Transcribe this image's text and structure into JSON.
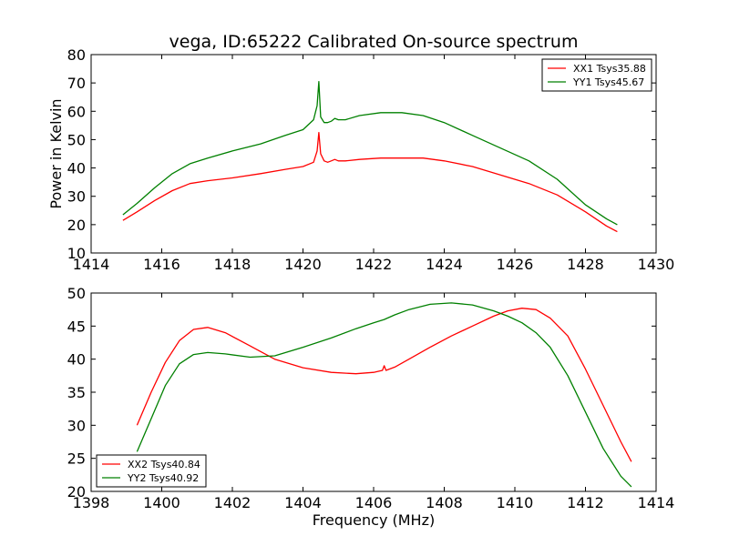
{
  "chart_data": [
    {
      "type": "line",
      "title": "vega, ID:65222 Calibrated On-source spectrum",
      "xlabel": "",
      "ylabel": "Power in Kelvin",
      "xlim": [
        1414,
        1430
      ],
      "ylim": [
        10,
        80
      ],
      "xticks": [
        1414,
        1416,
        1418,
        1420,
        1422,
        1424,
        1426,
        1428,
        1430
      ],
      "yticks": [
        10,
        20,
        30,
        40,
        50,
        60,
        70,
        80
      ],
      "legend_position": "top-right",
      "series": [
        {
          "name": "XX1 Tsys35.88",
          "color": "#ff0000",
          "x": [
            1414.9,
            1415.3,
            1415.8,
            1416.3,
            1416.8,
            1417.3,
            1418.0,
            1418.8,
            1419.5,
            1420.0,
            1420.3,
            1420.4,
            1420.45,
            1420.5,
            1420.6,
            1420.7,
            1420.8,
            1420.9,
            1421.0,
            1421.2,
            1421.6,
            1422.2,
            1422.8,
            1423.4,
            1424.0,
            1424.8,
            1425.6,
            1426.4,
            1427.2,
            1428.0,
            1428.6,
            1428.9
          ],
          "y": [
            21.5,
            24.5,
            28.5,
            32.0,
            34.5,
            35.5,
            36.5,
            38.0,
            39.5,
            40.5,
            42.0,
            46.0,
            52.5,
            45.0,
            42.5,
            42.0,
            42.5,
            43.0,
            42.5,
            42.5,
            43.0,
            43.5,
            43.5,
            43.5,
            42.5,
            40.5,
            37.5,
            34.5,
            30.5,
            24.5,
            19.5,
            17.5
          ]
        },
        {
          "name": "YY1 Tsys45.67",
          "color": "#008000",
          "x": [
            1414.9,
            1415.3,
            1415.8,
            1416.3,
            1416.8,
            1417.3,
            1418.0,
            1418.8,
            1419.5,
            1420.0,
            1420.3,
            1420.4,
            1420.45,
            1420.5,
            1420.6,
            1420.7,
            1420.8,
            1420.9,
            1421.0,
            1421.2,
            1421.6,
            1422.2,
            1422.8,
            1423.4,
            1424.0,
            1424.8,
            1425.6,
            1426.4,
            1427.2,
            1428.0,
            1428.6,
            1428.9
          ],
          "y": [
            23.5,
            27.5,
            33.0,
            38.0,
            41.5,
            43.5,
            46.0,
            48.5,
            51.5,
            53.5,
            57.0,
            62.0,
            70.5,
            58.0,
            56.0,
            56.0,
            56.5,
            57.5,
            57.0,
            57.0,
            58.5,
            59.5,
            59.5,
            58.5,
            56.0,
            51.5,
            47.0,
            42.5,
            36.0,
            27.0,
            22.0,
            20.0
          ]
        }
      ]
    },
    {
      "type": "line",
      "title": "",
      "xlabel": "Frequency (MHz)",
      "ylabel": "",
      "xlim": [
        1398,
        1414
      ],
      "ylim": [
        20,
        50
      ],
      "xticks": [
        1398,
        1400,
        1402,
        1404,
        1406,
        1408,
        1410,
        1412,
        1414
      ],
      "yticks": [
        20,
        25,
        30,
        35,
        40,
        45,
        50
      ],
      "legend_position": "bottom-left",
      "series": [
        {
          "name": "XX2 Tsys40.84",
          "color": "#ff0000",
          "x": [
            1399.3,
            1399.7,
            1400.1,
            1400.5,
            1400.9,
            1401.3,
            1401.8,
            1402.5,
            1403.2,
            1404.0,
            1404.8,
            1405.5,
            1406.0,
            1406.25,
            1406.3,
            1406.35,
            1406.6,
            1407.0,
            1407.6,
            1408.2,
            1408.8,
            1409.4,
            1409.8,
            1410.2,
            1410.6,
            1411.0,
            1411.5,
            1412.0,
            1412.5,
            1413.0,
            1413.3
          ],
          "y": [
            30.0,
            35.0,
            39.5,
            42.8,
            44.5,
            44.8,
            44.0,
            42.0,
            40.0,
            38.7,
            38.0,
            37.8,
            38.0,
            38.3,
            39.0,
            38.3,
            38.8,
            40.0,
            41.8,
            43.5,
            45.0,
            46.5,
            47.3,
            47.7,
            47.5,
            46.2,
            43.5,
            38.5,
            33.0,
            27.5,
            24.5
          ]
        },
        {
          "name": "YY2 Tsys40.92",
          "color": "#008000",
          "x": [
            1399.3,
            1399.7,
            1400.1,
            1400.5,
            1400.9,
            1401.3,
            1401.8,
            1402.5,
            1403.2,
            1404.0,
            1404.8,
            1405.5,
            1406.0,
            1406.3,
            1406.6,
            1407.0,
            1407.6,
            1408.2,
            1408.8,
            1409.4,
            1409.8,
            1410.2,
            1410.6,
            1411.0,
            1411.5,
            1412.0,
            1412.5,
            1413.0,
            1413.3
          ],
          "y": [
            26.0,
            31.0,
            36.0,
            39.3,
            40.7,
            41.0,
            40.8,
            40.3,
            40.5,
            41.8,
            43.2,
            44.6,
            45.5,
            46.0,
            46.7,
            47.5,
            48.3,
            48.5,
            48.2,
            47.3,
            46.5,
            45.5,
            44.0,
            41.8,
            37.5,
            32.0,
            26.5,
            22.3,
            20.7
          ]
        }
      ]
    }
  ]
}
